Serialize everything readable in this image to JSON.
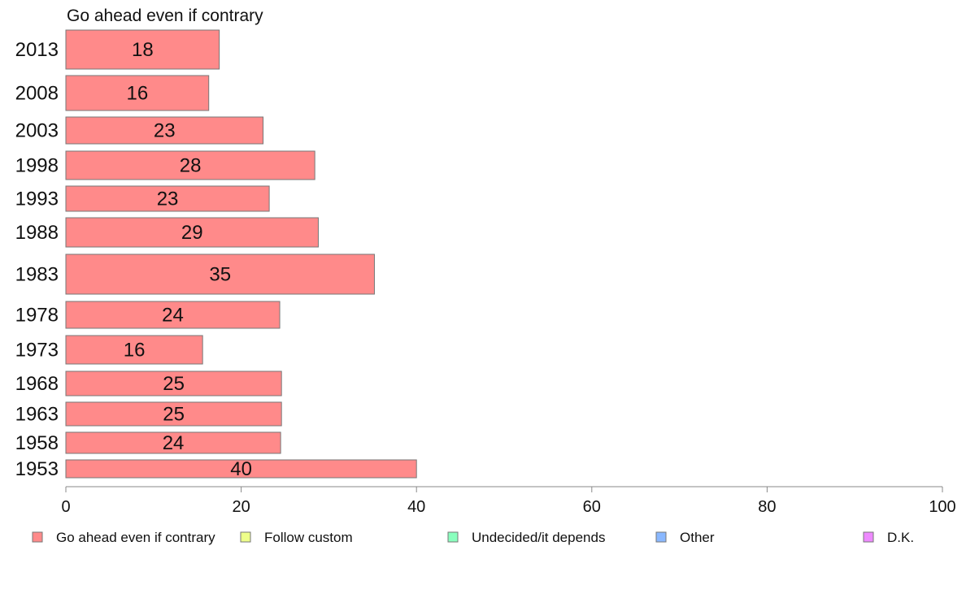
{
  "chart_data": {
    "type": "bar",
    "orientation": "horizontal",
    "title": "Go ahead even if contrary",
    "xlabel": "",
    "ylabel": "",
    "xlim": [
      0,
      100
    ],
    "x_ticks": [
      "0",
      "20",
      "40",
      "60",
      "80",
      "100"
    ],
    "categories": [
      "2013",
      "2008",
      "2003",
      "1998",
      "1993",
      "1988",
      "1983",
      "1978",
      "1973",
      "1968",
      "1963",
      "1958",
      "1953"
    ],
    "series": [
      {
        "name": "Go ahead even if contrary",
        "color": "#ff8a8a",
        "values": [
          18,
          16,
          23,
          28,
          23,
          29,
          35,
          24,
          16,
          25,
          25,
          24,
          40
        ],
        "bar_values": [
          17.5,
          16.3,
          22.5,
          28.4,
          23.2,
          28.8,
          35.2,
          24.4,
          15.6,
          24.6,
          24.6,
          24.5,
          40
        ]
      }
    ],
    "grid": false,
    "legend": {
      "placement": "bottom",
      "items": [
        {
          "label": "Go ahead even if contrary",
          "color": "#ff8a8a"
        },
        {
          "label": "Follow custom",
          "color": "#eeff8a"
        },
        {
          "label": "Undecided/it depends",
          "color": "#8affbe"
        },
        {
          "label": "Other",
          "color": "#8ab8ff"
        },
        {
          "label": "D.K.",
          "color": "#ee8aff"
        }
      ]
    }
  }
}
